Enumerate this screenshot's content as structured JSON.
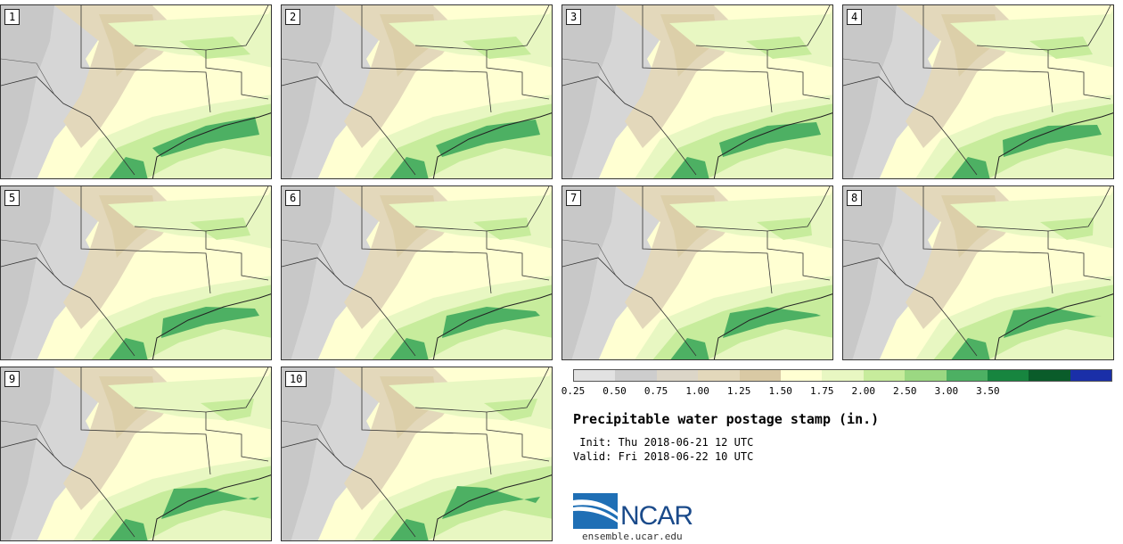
{
  "panels": [
    {
      "label": "1"
    },
    {
      "label": "2"
    },
    {
      "label": "3"
    },
    {
      "label": "4"
    },
    {
      "label": "5"
    },
    {
      "label": "6"
    },
    {
      "label": "7"
    },
    {
      "label": "8"
    },
    {
      "label": "9"
    },
    {
      "label": "10"
    }
  ],
  "colorbar": {
    "colors": [
      "#e2e2e2",
      "#cdcdcd",
      "#dcd6c8",
      "#e3d8bb",
      "#d9c9a4",
      "#ffffd2",
      "#e8f7c2",
      "#c7ec9c",
      "#9bd882",
      "#4db063",
      "#17853f",
      "#0a5c2a",
      "#1a2fa8"
    ],
    "ticks": [
      "0.25",
      "0.50",
      "0.75",
      "1.00",
      "1.25",
      "1.50",
      "1.75",
      "2.00",
      "2.50",
      "3.00",
      "3.50"
    ]
  },
  "legend": {
    "title": "Precipitable water postage stamp (in.)",
    "init": " Init: Thu 2018-06-21 12 UTC",
    "valid": "Valid: Fri 2018-06-22 10 UTC"
  },
  "logo": {
    "text": "NCAR",
    "url": "ensemble.ucar.edu"
  }
}
